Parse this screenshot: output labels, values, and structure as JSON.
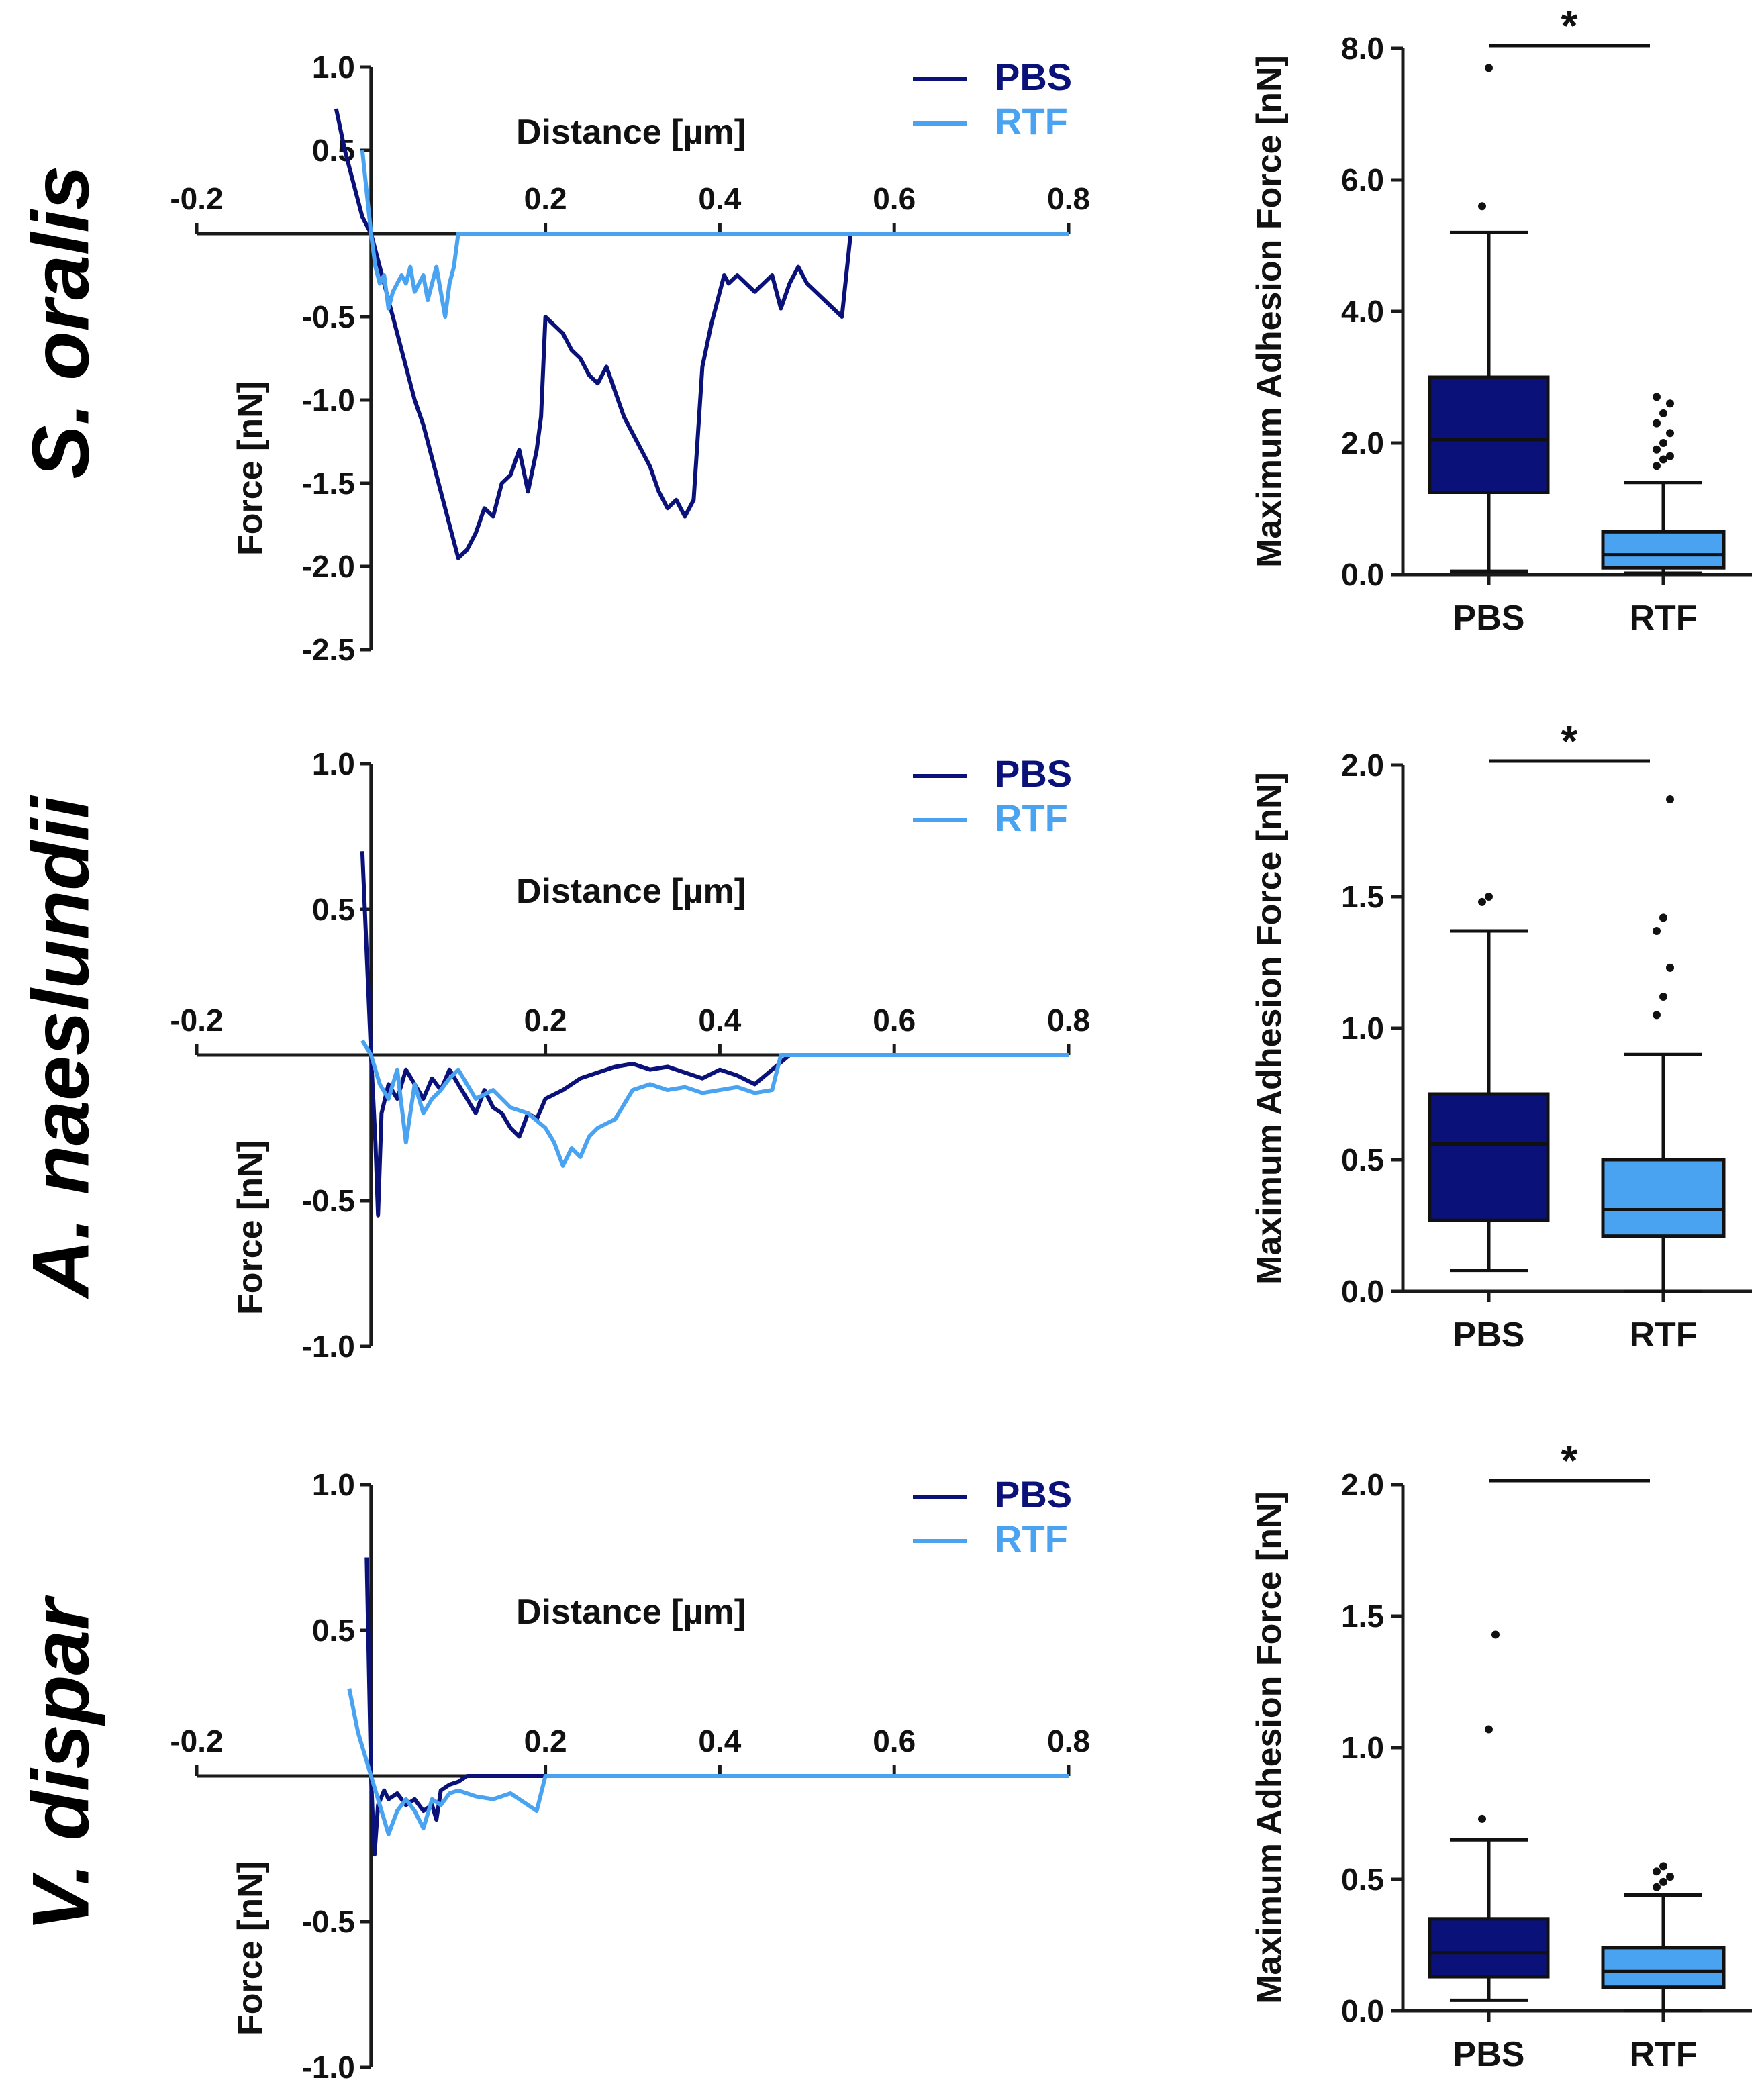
{
  "colors": {
    "PBS": "#0a127a",
    "RTF": "#4aa3f0",
    "axis": "#1a1a1a"
  },
  "chart_data": [
    {
      "panel": "S. oralis force curve",
      "type": "line",
      "species": "S. oralis",
      "xlabel": "Distance [µm]",
      "ylabel": "Force [nN]",
      "xlim": [
        -0.2,
        0.8
      ],
      "ylim": [
        -2.5,
        1.0
      ],
      "xticks": [
        -0.2,
        0.2,
        0.4,
        0.6,
        0.8
      ],
      "xtick_labels": [
        "-0.2",
        "0.2",
        "0.4",
        "0.6",
        "0.8"
      ],
      "yticks": [
        1.0,
        0.5,
        -0.5,
        -1.0,
        -1.5,
        -2.0,
        -2.5
      ],
      "ytick_labels": [
        "1.0",
        "0.5",
        "-0.5",
        "-1.0",
        "-1.5",
        "-2.0",
        "-2.5"
      ],
      "legend": [
        "PBS",
        "RTF"
      ],
      "series": [
        {
          "name": "PBS",
          "x": [
            -0.04,
            -0.03,
            -0.02,
            -0.01,
            0.0,
            0.01,
            0.02,
            0.03,
            0.04,
            0.05,
            0.06,
            0.07,
            0.08,
            0.09,
            0.1,
            0.11,
            0.12,
            0.13,
            0.14,
            0.15,
            0.16,
            0.17,
            0.18,
            0.19,
            0.195,
            0.2,
            0.21,
            0.22,
            0.23,
            0.24,
            0.25,
            0.26,
            0.27,
            0.28,
            0.29,
            0.3,
            0.31,
            0.32,
            0.33,
            0.34,
            0.35,
            0.36,
            0.37,
            0.38,
            0.39,
            0.4,
            0.405,
            0.41,
            0.42,
            0.43,
            0.44,
            0.45,
            0.46,
            0.47,
            0.48,
            0.49,
            0.5,
            0.51,
            0.52,
            0.53,
            0.54,
            0.55,
            0.56,
            0.57,
            0.58,
            0.59,
            0.6,
            0.7,
            0.8
          ],
          "y": [
            0.75,
            0.5,
            0.3,
            0.1,
            0.0,
            -0.2,
            -0.4,
            -0.6,
            -0.8,
            -1.0,
            -1.15,
            -1.35,
            -1.55,
            -1.75,
            -1.95,
            -1.9,
            -1.8,
            -1.65,
            -1.7,
            -1.5,
            -1.45,
            -1.3,
            -1.55,
            -1.3,
            -1.1,
            -0.5,
            -0.55,
            -0.6,
            -0.7,
            -0.75,
            -0.85,
            -0.9,
            -0.8,
            -0.95,
            -1.1,
            -1.2,
            -1.3,
            -1.4,
            -1.55,
            -1.65,
            -1.6,
            -1.7,
            -1.6,
            -0.8,
            -0.55,
            -0.35,
            -0.25,
            -0.3,
            -0.25,
            -0.3,
            -0.35,
            -0.3,
            -0.25,
            -0.45,
            -0.3,
            -0.2,
            -0.3,
            -0.35,
            -0.4,
            -0.45,
            -0.5,
            0.0,
            0.0,
            0.0,
            0.0,
            0.0,
            0.0,
            0.0,
            0.0
          ]
        },
        {
          "name": "RTF",
          "x": [
            -0.01,
            0.0,
            0.005,
            0.01,
            0.015,
            0.02,
            0.025,
            0.03,
            0.035,
            0.04,
            0.045,
            0.05,
            0.055,
            0.06,
            0.065,
            0.07,
            0.075,
            0.08,
            0.085,
            0.09,
            0.095,
            0.1,
            0.1,
            0.2,
            0.4,
            0.6,
            0.8
          ],
          "y": [
            0.5,
            0.0,
            -0.2,
            -0.3,
            -0.25,
            -0.45,
            -0.35,
            -0.3,
            -0.25,
            -0.3,
            -0.2,
            -0.35,
            -0.3,
            -0.25,
            -0.4,
            -0.3,
            -0.2,
            -0.35,
            -0.5,
            -0.3,
            -0.2,
            0.0,
            0.0,
            0.0,
            0.0,
            0.0,
            0.0
          ]
        }
      ]
    },
    {
      "panel": "S. oralis box plot",
      "type": "box",
      "ylabel": "Maximum Adhesion Force [nN]",
      "ylim": [
        0.0,
        8.0
      ],
      "yticks": [
        0.0,
        2.0,
        4.0,
        6.0,
        8.0
      ],
      "ytick_labels": [
        "0.0",
        "2.0",
        "4.0",
        "6.0",
        "8.0"
      ],
      "categories": [
        "PBS",
        "RTF"
      ],
      "significance": "*",
      "boxes": [
        {
          "name": "PBS",
          "whisker_low": 0.05,
          "q1": 1.25,
          "median": 2.05,
          "q3": 3.0,
          "whisker_high": 5.2,
          "outliers": [
            5.6,
            7.7
          ]
        },
        {
          "name": "RTF",
          "whisker_low": 0.02,
          "q1": 0.1,
          "median": 0.3,
          "q3": 0.65,
          "whisker_high": 1.4,
          "outliers": [
            1.65,
            1.75,
            1.8,
            1.9,
            2.0,
            2.15,
            2.3,
            2.45,
            2.6,
            2.7
          ]
        }
      ]
    },
    {
      "panel": "A. naeslundii force curve",
      "type": "line",
      "species": "A. naeslundii",
      "xlabel": "Distance [µm]",
      "ylabel": "Force [nN]",
      "xlim": [
        -0.2,
        0.8
      ],
      "ylim": [
        -1.0,
        1.0
      ],
      "xticks": [
        -0.2,
        0.2,
        0.4,
        0.6,
        0.8
      ],
      "xtick_labels": [
        "-0.2",
        "0.2",
        "0.4",
        "0.6",
        "0.8"
      ],
      "yticks": [
        1.0,
        0.5,
        -0.5,
        -1.0
      ],
      "ytick_labels": [
        "1.0",
        "0.5",
        "-0.5",
        "-1.0"
      ],
      "legend": [
        "PBS",
        "RTF"
      ],
      "series": [
        {
          "name": "PBS",
          "x": [
            -0.01,
            0.0,
            0.005,
            0.008,
            0.012,
            0.02,
            0.03,
            0.04,
            0.05,
            0.06,
            0.07,
            0.08,
            0.09,
            0.1,
            0.11,
            0.12,
            0.13,
            0.14,
            0.15,
            0.16,
            0.17,
            0.18,
            0.19,
            0.2,
            0.22,
            0.24,
            0.26,
            0.28,
            0.3,
            0.32,
            0.34,
            0.36,
            0.38,
            0.4,
            0.42,
            0.44,
            0.46,
            0.48,
            0.6,
            0.8
          ],
          "y": [
            0.7,
            0.0,
            -0.3,
            -0.55,
            -0.2,
            -0.1,
            -0.15,
            -0.05,
            -0.1,
            -0.15,
            -0.08,
            -0.12,
            -0.05,
            -0.1,
            -0.15,
            -0.2,
            -0.12,
            -0.18,
            -0.2,
            -0.25,
            -0.28,
            -0.2,
            -0.22,
            -0.15,
            -0.12,
            -0.08,
            -0.06,
            -0.04,
            -0.03,
            -0.05,
            -0.04,
            -0.06,
            -0.08,
            -0.05,
            -0.07,
            -0.1,
            -0.05,
            0.0,
            0.0,
            0.0
          ]
        },
        {
          "name": "RTF",
          "x": [
            -0.01,
            0.0,
            0.01,
            0.02,
            0.03,
            0.04,
            0.05,
            0.06,
            0.07,
            0.08,
            0.09,
            0.1,
            0.12,
            0.14,
            0.16,
            0.18,
            0.2,
            0.21,
            0.22,
            0.23,
            0.24,
            0.25,
            0.26,
            0.28,
            0.3,
            0.32,
            0.34,
            0.36,
            0.38,
            0.4,
            0.42,
            0.44,
            0.46,
            0.47,
            0.6,
            0.8
          ],
          "y": [
            0.05,
            0.0,
            -0.1,
            -0.15,
            -0.05,
            -0.3,
            -0.1,
            -0.2,
            -0.15,
            -0.12,
            -0.08,
            -0.05,
            -0.15,
            -0.12,
            -0.18,
            -0.2,
            -0.25,
            -0.3,
            -0.38,
            -0.32,
            -0.35,
            -0.28,
            -0.25,
            -0.22,
            -0.12,
            -0.1,
            -0.12,
            -0.11,
            -0.13,
            -0.12,
            -0.11,
            -0.13,
            -0.12,
            0.0,
            0.0,
            0.0
          ]
        }
      ]
    },
    {
      "panel": "A. naeslundii box plot",
      "type": "box",
      "ylabel": "Maximum Adhesion Force [nN]",
      "ylim": [
        0.0,
        2.0
      ],
      "yticks": [
        0.0,
        0.5,
        1.0,
        1.5,
        2.0
      ],
      "ytick_labels": [
        "0.0",
        "0.5",
        "1.0",
        "1.5",
        "2.0"
      ],
      "categories": [
        "PBS",
        "RTF"
      ],
      "significance": "*",
      "boxes": [
        {
          "name": "PBS",
          "whisker_low": 0.08,
          "q1": 0.27,
          "median": 0.56,
          "q3": 0.75,
          "whisker_high": 1.37,
          "outliers": [
            1.48,
            1.5
          ]
        },
        {
          "name": "RTF",
          "whisker_low": 0.0,
          "q1": 0.21,
          "median": 0.31,
          "q3": 0.5,
          "whisker_high": 0.9,
          "outliers": [
            1.05,
            1.12,
            1.23,
            1.37,
            1.42,
            1.87
          ]
        }
      ]
    },
    {
      "panel": "V. dispar force curve",
      "type": "line",
      "species": "V. dispar",
      "xlabel": "Distance [µm]",
      "ylabel": "Force [nN]",
      "xlim": [
        -0.2,
        0.8
      ],
      "ylim": [
        -1.0,
        1.0
      ],
      "xticks": [
        -0.2,
        0.2,
        0.4,
        0.6,
        0.8
      ],
      "xtick_labels": [
        "-0.2",
        "0.2",
        "0.4",
        "0.6",
        "0.8"
      ],
      "yticks": [
        1.0,
        0.5,
        -0.5,
        -1.0
      ],
      "ytick_labels": [
        "1.0",
        "0.5",
        "-0.5",
        "-1.0"
      ],
      "legend": [
        "PBS",
        "RTF"
      ],
      "series": [
        {
          "name": "PBS",
          "x": [
            -0.005,
            0.0,
            0.002,
            0.004,
            0.008,
            0.015,
            0.02,
            0.03,
            0.04,
            0.05,
            0.06,
            0.07,
            0.075,
            0.08,
            0.09,
            0.1,
            0.11,
            0.2,
            0.4,
            0.6,
            0.8
          ],
          "y": [
            0.75,
            0.0,
            -0.15,
            -0.27,
            -0.1,
            -0.05,
            -0.08,
            -0.06,
            -0.1,
            -0.08,
            -0.12,
            -0.1,
            -0.15,
            -0.05,
            -0.03,
            -0.02,
            0.0,
            0.0,
            0.0,
            0.0,
            0.0
          ]
        },
        {
          "name": "RTF",
          "x": [
            -0.025,
            -0.015,
            -0.005,
            0.0,
            0.01,
            0.02,
            0.03,
            0.04,
            0.05,
            0.06,
            0.07,
            0.08,
            0.09,
            0.1,
            0.12,
            0.14,
            0.16,
            0.18,
            0.19,
            0.2,
            0.4,
            0.6,
            0.8
          ],
          "y": [
            0.3,
            0.15,
            0.05,
            0.0,
            -0.1,
            -0.2,
            -0.12,
            -0.08,
            -0.12,
            -0.18,
            -0.08,
            -0.1,
            -0.06,
            -0.05,
            -0.07,
            -0.08,
            -0.06,
            -0.1,
            -0.12,
            0.0,
            0.0,
            0.0,
            0.0
          ]
        }
      ]
    },
    {
      "panel": "V. dispar box plot",
      "type": "box",
      "ylabel": "Maximum Adhesion Force [nN]",
      "ylim": [
        0.0,
        2.0
      ],
      "yticks": [
        0.0,
        0.5,
        1.0,
        1.5,
        2.0
      ],
      "ytick_labels": [
        "0.0",
        "0.5",
        "1.0",
        "1.5",
        "2.0"
      ],
      "categories": [
        "PBS",
        "RTF"
      ],
      "significance": "*",
      "boxes": [
        {
          "name": "PBS",
          "whisker_low": 0.04,
          "q1": 0.13,
          "median": 0.22,
          "q3": 0.35,
          "whisker_high": 0.65,
          "outliers": [
            0.73,
            1.07,
            1.43
          ]
        },
        {
          "name": "RTF",
          "whisker_low": 0.0,
          "q1": 0.09,
          "median": 0.15,
          "q3": 0.24,
          "whisker_high": 0.44,
          "outliers": [
            0.47,
            0.49,
            0.51,
            0.53,
            0.55
          ]
        }
      ]
    }
  ]
}
